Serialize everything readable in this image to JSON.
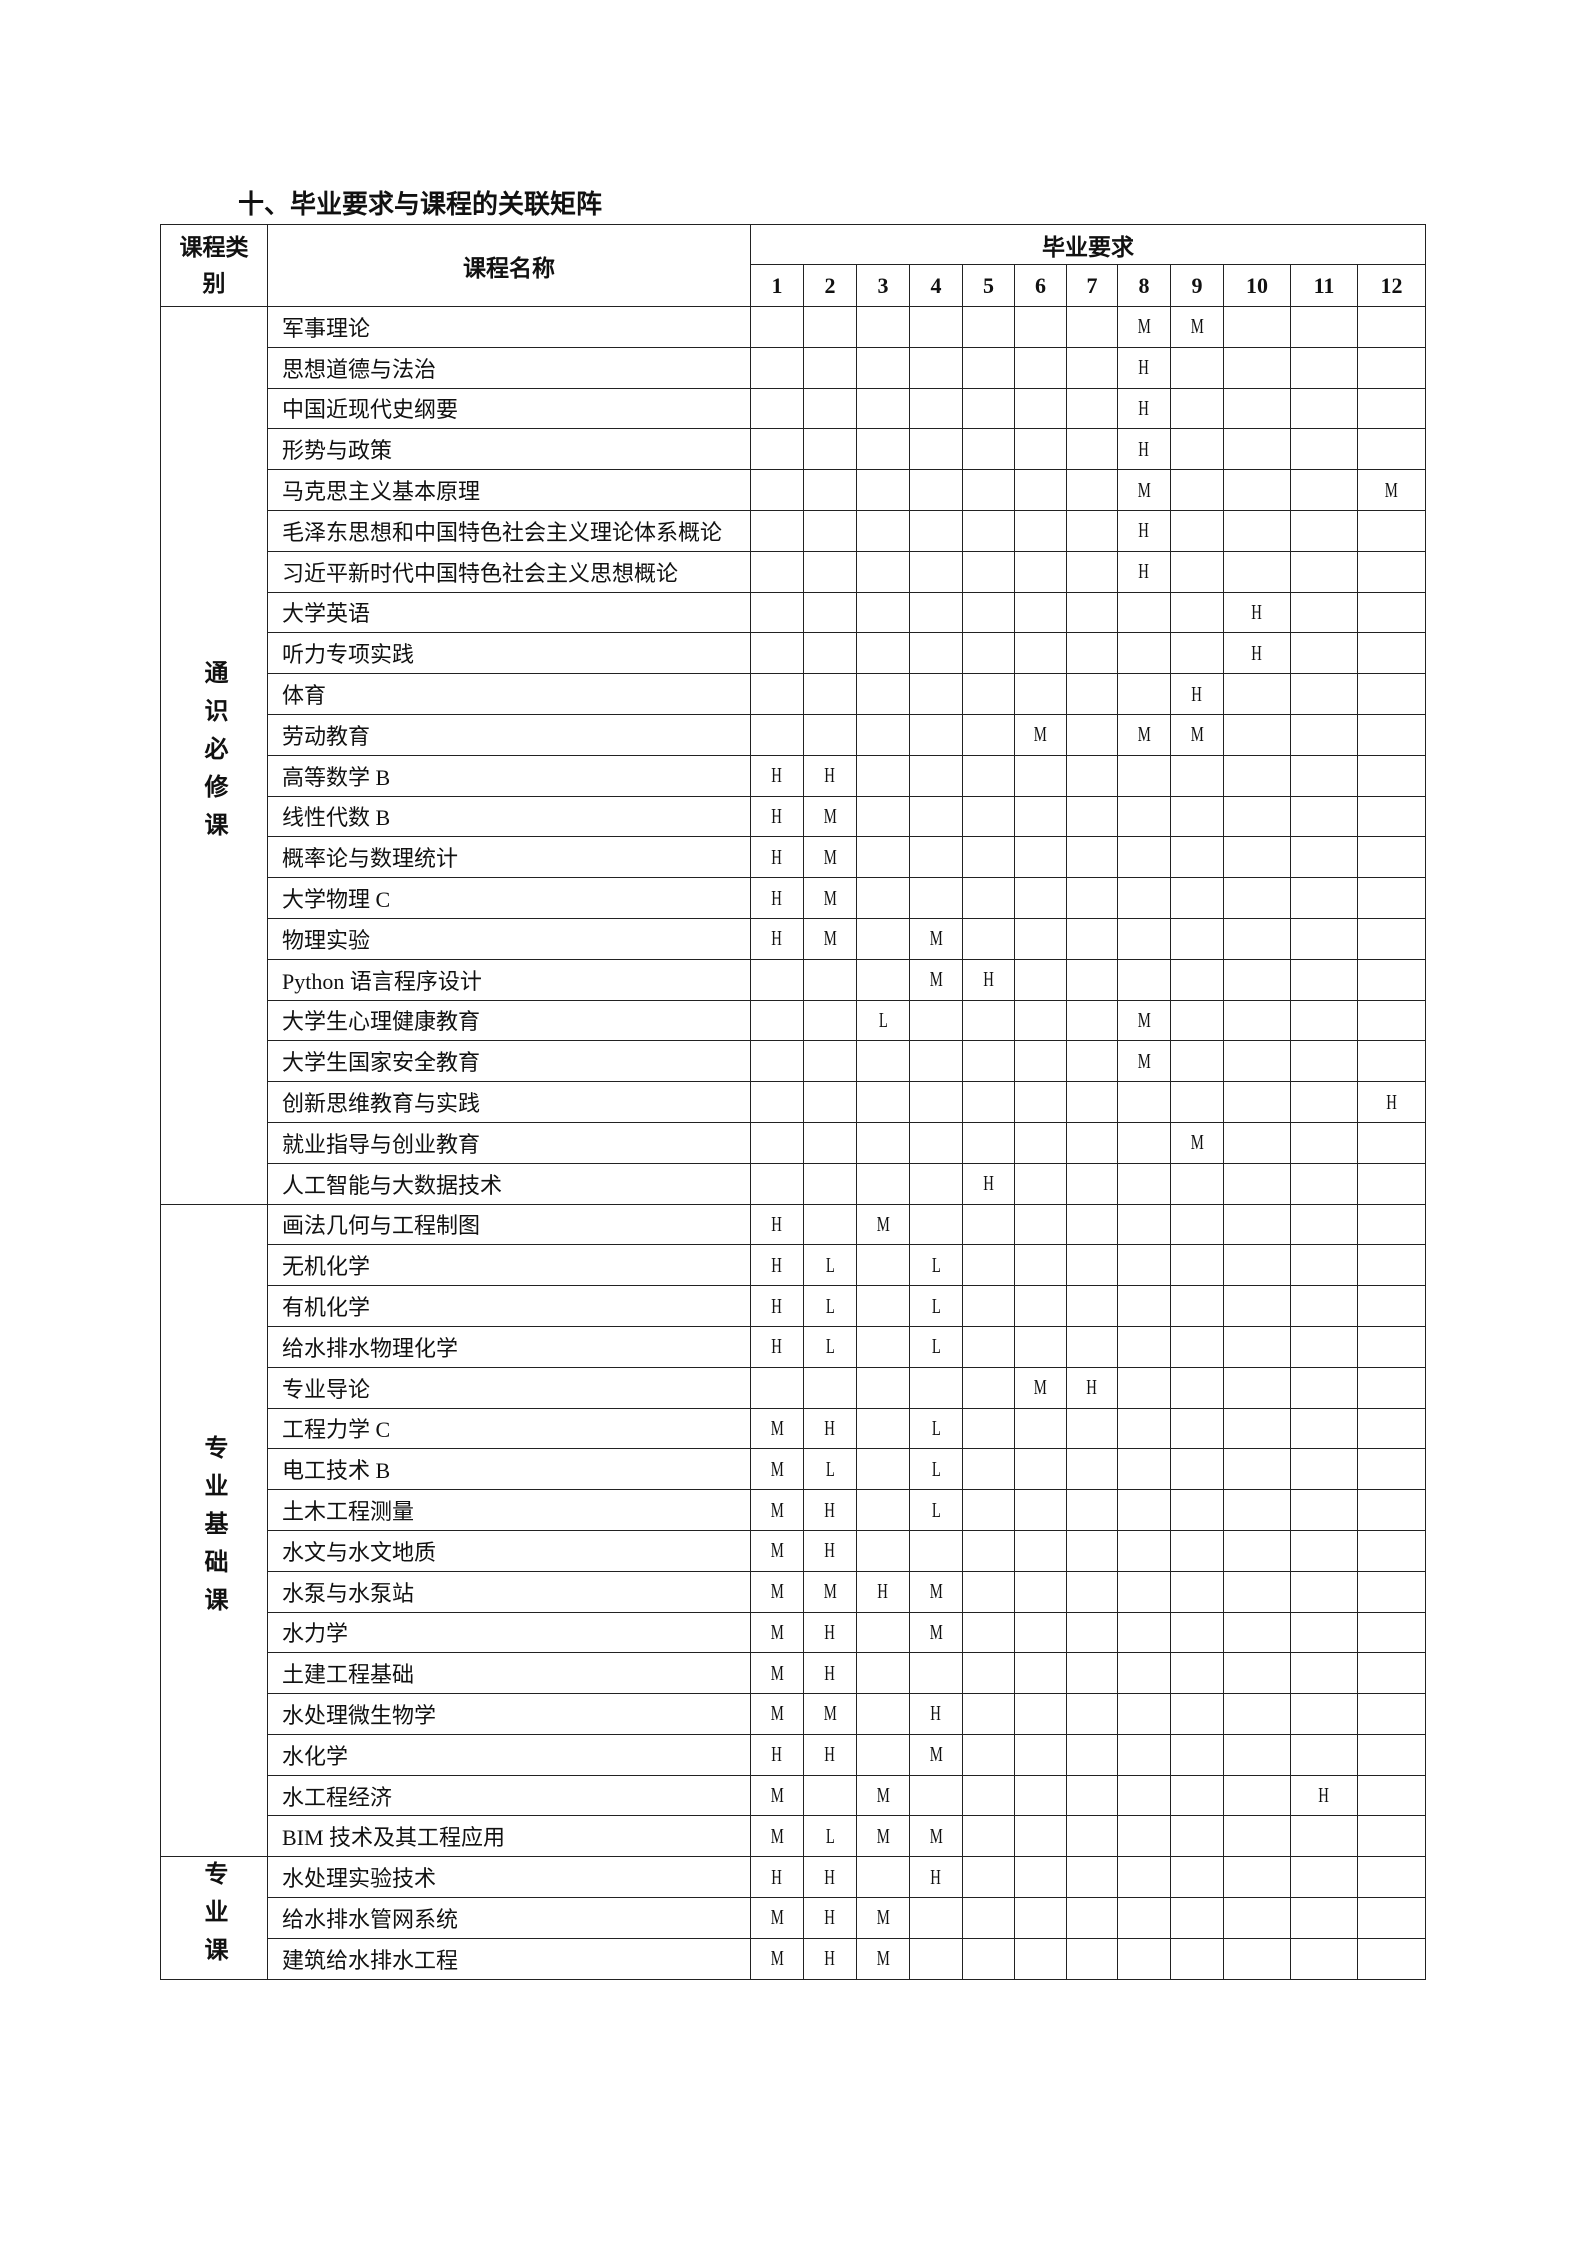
{
  "title": "十、毕业要求与课程的关联矩阵",
  "header": {
    "category": "课程类别",
    "course_name": "课程名称",
    "requirements": "毕业要求",
    "requirement_numbers": [
      "1",
      "2",
      "3",
      "4",
      "5",
      "6",
      "7",
      "8",
      "9",
      "10",
      "11",
      "12"
    ]
  },
  "groups": [
    {
      "category": "通识必修课",
      "courses": [
        {
          "name": "军事理论",
          "marks": [
            "",
            "",
            "",
            "",
            "",
            "",
            "",
            "M",
            "M",
            "",
            "",
            ""
          ]
        },
        {
          "name": "思想道德与法治",
          "marks": [
            "",
            "",
            "",
            "",
            "",
            "",
            "",
            "H",
            "",
            "",
            "",
            ""
          ]
        },
        {
          "name": "中国近现代史纲要",
          "marks": [
            "",
            "",
            "",
            "",
            "",
            "",
            "",
            "H",
            "",
            "",
            "",
            ""
          ]
        },
        {
          "name": "形势与政策",
          "marks": [
            "",
            "",
            "",
            "",
            "",
            "",
            "",
            "H",
            "",
            "",
            "",
            ""
          ]
        },
        {
          "name": "马克思主义基本原理",
          "marks": [
            "",
            "",
            "",
            "",
            "",
            "",
            "",
            "M",
            "",
            "",
            "",
            "M"
          ]
        },
        {
          "name": "毛泽东思想和中国特色社会主义理论体系概论",
          "marks": [
            "",
            "",
            "",
            "",
            "",
            "",
            "",
            "H",
            "",
            "",
            "",
            ""
          ]
        },
        {
          "name": "习近平新时代中国特色社会主义思想概论",
          "marks": [
            "",
            "",
            "",
            "",
            "",
            "",
            "",
            "H",
            "",
            "",
            "",
            ""
          ]
        },
        {
          "name": "大学英语",
          "marks": [
            "",
            "",
            "",
            "",
            "",
            "",
            "",
            "",
            "",
            "H",
            "",
            ""
          ]
        },
        {
          "name": "听力专项实践",
          "marks": [
            "",
            "",
            "",
            "",
            "",
            "",
            "",
            "",
            "",
            "H",
            "",
            ""
          ]
        },
        {
          "name": "体育",
          "marks": [
            "",
            "",
            "",
            "",
            "",
            "",
            "",
            "",
            "H",
            "",
            "",
            ""
          ]
        },
        {
          "name": "劳动教育",
          "marks": [
            "",
            "",
            "",
            "",
            "",
            "M",
            "",
            "M",
            "M",
            "",
            "",
            ""
          ]
        },
        {
          "name": "高等数学 B",
          "marks": [
            "H",
            "H",
            "",
            "",
            "",
            "",
            "",
            "",
            "",
            "",
            "",
            ""
          ]
        },
        {
          "name": "线性代数 B",
          "marks": [
            "H",
            "M",
            "",
            "",
            "",
            "",
            "",
            "",
            "",
            "",
            "",
            ""
          ]
        },
        {
          "name": "概率论与数理统计",
          "marks": [
            "H",
            "M",
            "",
            "",
            "",
            "",
            "",
            "",
            "",
            "",
            "",
            ""
          ]
        },
        {
          "name": "大学物理 C",
          "marks": [
            "H",
            "M",
            "",
            "",
            "",
            "",
            "",
            "",
            "",
            "",
            "",
            ""
          ]
        },
        {
          "name": "物理实验",
          "marks": [
            "H",
            "M",
            "",
            "M",
            "",
            "",
            "",
            "",
            "",
            "",
            "",
            ""
          ]
        },
        {
          "name": "Python 语言程序设计",
          "marks": [
            "",
            "",
            "",
            "M",
            "H",
            "",
            "",
            "",
            "",
            "",
            "",
            ""
          ]
        },
        {
          "name": "大学生心理健康教育",
          "marks": [
            "",
            "",
            "L",
            "",
            "",
            "",
            "",
            "M",
            "",
            "",
            "",
            ""
          ]
        },
        {
          "name": "大学生国家安全教育",
          "marks": [
            "",
            "",
            "",
            "",
            "",
            "",
            "",
            "M",
            "",
            "",
            "",
            ""
          ]
        },
        {
          "name": "创新思维教育与实践",
          "marks": [
            "",
            "",
            "",
            "",
            "",
            "",
            "",
            "",
            "",
            "",
            "",
            "H"
          ]
        },
        {
          "name": "就业指导与创业教育",
          "marks": [
            "",
            "",
            "",
            "",
            "",
            "",
            "",
            "",
            "M",
            "",
            "",
            ""
          ]
        },
        {
          "name": "人工智能与大数据技术",
          "marks": [
            "",
            "",
            "",
            "",
            "H",
            "",
            "",
            "",
            "",
            "",
            "",
            ""
          ]
        }
      ]
    },
    {
      "category": "专业基础课",
      "courses": [
        {
          "name": "画法几何与工程制图",
          "marks": [
            "H",
            "",
            "M",
            "",
            "",
            "",
            "",
            "",
            "",
            "",
            "",
            ""
          ]
        },
        {
          "name": "无机化学",
          "marks": [
            "H",
            "L",
            "",
            "L",
            "",
            "",
            "",
            "",
            "",
            "",
            "",
            ""
          ]
        },
        {
          "name": "有机化学",
          "marks": [
            "H",
            "L",
            "",
            "L",
            "",
            "",
            "",
            "",
            "",
            "",
            "",
            ""
          ]
        },
        {
          "name": "给水排水物理化学",
          "marks": [
            "H",
            "L",
            "",
            "L",
            "",
            "",
            "",
            "",
            "",
            "",
            "",
            ""
          ]
        },
        {
          "name": "专业导论",
          "marks": [
            "",
            "",
            "",
            "",
            "",
            "M",
            "H",
            "",
            "",
            "",
            "",
            ""
          ]
        },
        {
          "name": "工程力学 C",
          "marks": [
            "M",
            "H",
            "",
            "L",
            "",
            "",
            "",
            "",
            "",
            "",
            "",
            ""
          ]
        },
        {
          "name": "电工技术 B",
          "marks": [
            "M",
            "L",
            "",
            "L",
            "",
            "",
            "",
            "",
            "",
            "",
            "",
            ""
          ]
        },
        {
          "name": "土木工程测量",
          "marks": [
            "M",
            "H",
            "",
            "L",
            "",
            "",
            "",
            "",
            "",
            "",
            "",
            ""
          ]
        },
        {
          "name": "水文与水文地质",
          "marks": [
            "M",
            "H",
            "",
            "",
            "",
            "",
            "",
            "",
            "",
            "",
            "",
            ""
          ]
        },
        {
          "name": "水泵与水泵站",
          "marks": [
            "M",
            "M",
            "H",
            "M",
            "",
            "",
            "",
            "",
            "",
            "",
            "",
            ""
          ]
        },
        {
          "name": "水力学",
          "marks": [
            "M",
            "H",
            "",
            "M",
            "",
            "",
            "",
            "",
            "",
            "",
            "",
            ""
          ]
        },
        {
          "name": "土建工程基础",
          "marks": [
            "M",
            "H",
            "",
            "",
            "",
            "",
            "",
            "",
            "",
            "",
            "",
            ""
          ]
        },
        {
          "name": "水处理微生物学",
          "marks": [
            "M",
            "M",
            "",
            "H",
            "",
            "",
            "",
            "",
            "",
            "",
            "",
            ""
          ]
        },
        {
          "name": "水化学",
          "marks": [
            "H",
            "H",
            "",
            "M",
            "",
            "",
            "",
            "",
            "",
            "",
            "",
            ""
          ]
        },
        {
          "name": "水工程经济",
          "marks": [
            "M",
            "",
            "M",
            "",
            "",
            "",
            "",
            "",
            "",
            "",
            "H",
            ""
          ]
        },
        {
          "name": "BIM 技术及其工程应用",
          "marks": [
            "M",
            "L",
            "M",
            "M",
            "",
            "",
            "",
            "",
            "",
            "",
            "",
            ""
          ]
        }
      ]
    },
    {
      "category": "专业课",
      "courses": [
        {
          "name": "水处理实验技术",
          "marks": [
            "H",
            "H",
            "",
            "H",
            "",
            "",
            "",
            "",
            "",
            "",
            "",
            ""
          ]
        },
        {
          "name": "给水排水管网系统",
          "marks": [
            "M",
            "H",
            "M",
            "",
            "",
            "",
            "",
            "",
            "",
            "",
            "",
            ""
          ]
        },
        {
          "name": "建筑给水排水工程",
          "marks": [
            "M",
            "H",
            "M",
            "",
            "",
            "",
            "",
            "",
            "",
            "",
            "",
            ""
          ]
        }
      ]
    }
  ]
}
